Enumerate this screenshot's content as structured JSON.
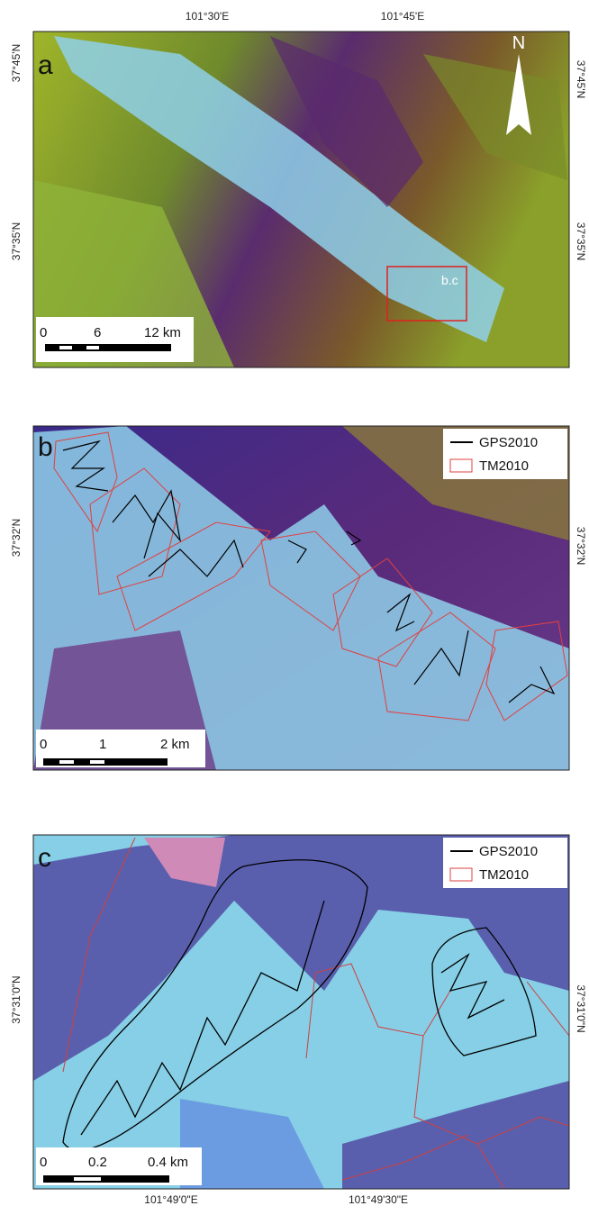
{
  "top_labels": [
    "101°30'E",
    "101°45'E"
  ],
  "bottom_labels": [
    "101°49'0\"E",
    "101°49'30\"E"
  ],
  "panels": [
    {
      "letter": "a",
      "left_labels": [
        "37°45'N",
        "37°35'N"
      ],
      "right_labels": [
        "37°45'N",
        "37°35'N"
      ],
      "scale": [
        "0",
        "6",
        "12 km"
      ],
      "north": "N",
      "box_label": "b.c"
    },
    {
      "letter": "b",
      "left_labels": [
        "37°32'N"
      ],
      "right_labels": [
        "37°32'N"
      ],
      "scale": [
        "0",
        "1",
        "2 km"
      ],
      "legend": [
        "GPS2010",
        "TM2010"
      ]
    },
    {
      "letter": "c",
      "left_labels": [
        "37°31'0\"N"
      ],
      "right_labels": [
        "37°31'0\"N"
      ],
      "scale": [
        "0",
        "0.2",
        "0.4 km"
      ],
      "legend": [
        "GPS2010",
        "TM2010"
      ]
    }
  ]
}
